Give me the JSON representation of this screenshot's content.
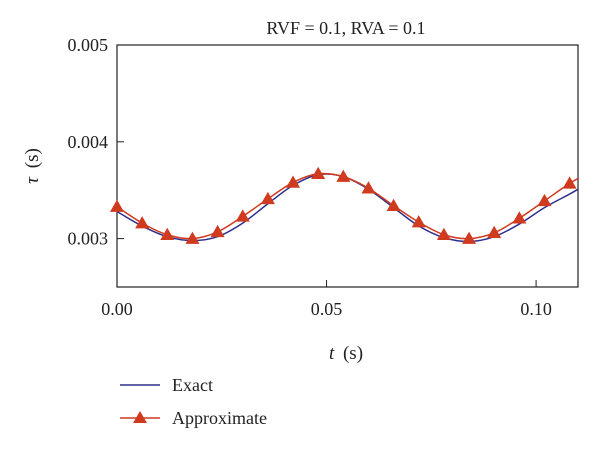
{
  "chart_data": {
    "type": "line",
    "title": "RVF = 0.1, RVA = 0.1",
    "xlabel_var": "t",
    "xlabel_unit": "(s)",
    "ylabel_var": "τ",
    "ylabel_unit": "(s)",
    "xlim": [
      0,
      0.11
    ],
    "ylim": [
      0.0025,
      0.005
    ],
    "xticks": [
      0.0,
      0.05,
      0.1
    ],
    "xtick_labels": [
      "0.00",
      "0.05",
      "0.10"
    ],
    "yticks": [
      0.003,
      0.004,
      0.005
    ],
    "ytick_labels": [
      "0.003",
      "0.004",
      "0.005"
    ],
    "grid": false,
    "legend_placement": "bottom-left, below plot",
    "series": [
      {
        "name": "Exact",
        "color": "#2e2e8f",
        "marker": "none",
        "x": [
          0.0,
          0.006,
          0.012,
          0.018,
          0.024,
          0.03,
          0.036,
          0.042,
          0.048,
          0.054,
          0.06,
          0.066,
          0.072,
          0.078,
          0.084,
          0.09,
          0.096,
          0.102,
          0.108,
          0.11
        ],
        "y": [
          0.00328,
          0.00313,
          0.00302,
          0.00298,
          0.00302,
          0.00316,
          0.00336,
          0.00355,
          0.00366,
          0.00364,
          0.00351,
          0.00332,
          0.00313,
          0.00301,
          0.00297,
          0.00302,
          0.00315,
          0.00332,
          0.00346,
          0.00351
        ]
      },
      {
        "name": "Approximate",
        "color": "#d03a1e",
        "marker": "triangle",
        "x": [
          0.0,
          0.006,
          0.012,
          0.018,
          0.024,
          0.03,
          0.036,
          0.042,
          0.048,
          0.054,
          0.06,
          0.066,
          0.072,
          0.078,
          0.084,
          0.09,
          0.096,
          0.102,
          0.108,
          0.11
        ],
        "y": [
          0.00333,
          0.00316,
          0.00304,
          0.003,
          0.00307,
          0.00323,
          0.00341,
          0.00358,
          0.00367,
          0.00364,
          0.00352,
          0.00334,
          0.00317,
          0.00304,
          0.003,
          0.00306,
          0.00321,
          0.00339,
          0.00357,
          0.00362
        ],
        "marker_x": [
          0.0,
          0.006,
          0.012,
          0.018,
          0.024,
          0.03,
          0.036,
          0.042,
          0.048,
          0.054,
          0.06,
          0.066,
          0.072,
          0.078,
          0.084,
          0.09,
          0.096,
          0.102,
          0.108
        ],
        "marker_y": [
          0.00333,
          0.00316,
          0.00304,
          0.003,
          0.00307,
          0.00323,
          0.00341,
          0.00358,
          0.00367,
          0.00364,
          0.00352,
          0.00334,
          0.00317,
          0.00304,
          0.003,
          0.00306,
          0.00321,
          0.00339,
          0.00357
        ]
      }
    ]
  }
}
